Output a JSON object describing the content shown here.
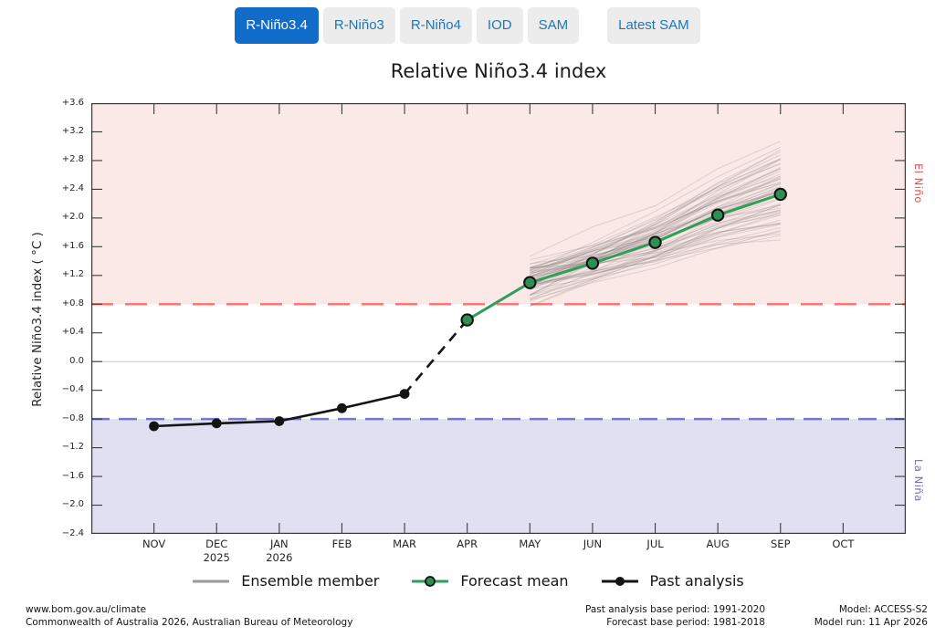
{
  "tabs": {
    "active_bg": "#116bc9",
    "active_fg": "#ffffff",
    "inactive_bg": "#ececec",
    "inactive_fg": "#1f76b4",
    "items": [
      {
        "label": "R-Niño3.4",
        "active": true
      },
      {
        "label": "R-Niño3",
        "active": false
      },
      {
        "label": "R-Niño4",
        "active": false
      },
      {
        "label": "IOD",
        "active": false
      },
      {
        "label": "SAM",
        "active": false
      },
      {
        "label": "Latest SAM",
        "active": false,
        "separated": true
      }
    ]
  },
  "chart_data": {
    "type": "line",
    "title": "Relative Niño3.4 index",
    "ylabel": "Relative Niño3.4 index ( °C )",
    "xlabel": "",
    "ylim": [
      -2.4,
      3.6
    ],
    "grid": "zero-line-only",
    "gridline_at": 0.0,
    "legend_position": "bottom-center",
    "y_ticks": [
      {
        "value": 3.6,
        "label": "+3.6"
      },
      {
        "value": 3.2,
        "label": "+3.2"
      },
      {
        "value": 2.8,
        "label": "+2.8"
      },
      {
        "value": 2.4,
        "label": "+2.4"
      },
      {
        "value": 2.0,
        "label": "+2.0"
      },
      {
        "value": 1.6,
        "label": "+1.6"
      },
      {
        "value": 1.2,
        "label": "+1.2"
      },
      {
        "value": 0.8,
        "label": "+0.8"
      },
      {
        "value": 0.4,
        "label": "+0.4"
      },
      {
        "value": 0.0,
        "label": "0.0"
      },
      {
        "value": -0.4,
        "label": "−0.4"
      },
      {
        "value": -0.8,
        "label": "−0.8"
      },
      {
        "value": -1.2,
        "label": "−1.2"
      },
      {
        "value": -1.6,
        "label": "−1.6"
      },
      {
        "value": -2.0,
        "label": "−2.0"
      },
      {
        "value": -2.4,
        "label": "−2.4"
      }
    ],
    "months": [
      {
        "label": "NOV"
      },
      {
        "label": "DEC",
        "year": "2025"
      },
      {
        "label": "JAN",
        "year": "2026"
      },
      {
        "label": "FEB"
      },
      {
        "label": "MAR"
      },
      {
        "label": "APR"
      },
      {
        "label": "MAY"
      },
      {
        "label": "JUN"
      },
      {
        "label": "JUL"
      },
      {
        "label": "AUG"
      },
      {
        "label": "SEP"
      },
      {
        "label": "OCT"
      }
    ],
    "bands": {
      "el_nino_threshold": 0.8,
      "la_nina_threshold": -0.8,
      "el_nino_fill": "#fbe9e7",
      "la_nina_fill": "#e0e0f2",
      "el_nino_line_color": "#fb5a5a",
      "la_nina_line_color": "#5a5abe",
      "el_nino_label": "El Niño",
      "la_nina_label": "La Niña",
      "el_nino_label_color": "#e05252",
      "la_nina_label_color": "#6f6fbf"
    },
    "series": [
      {
        "name": "Past analysis",
        "style": "line-marker",
        "color": "#141414",
        "x_months": [
          "NOV",
          "DEC",
          "JAN",
          "FEB",
          "MAR"
        ],
        "values": [
          -0.9,
          -0.86,
          -0.83,
          -0.65,
          -0.45
        ]
      },
      {
        "name": "Forecast mean",
        "style": "line-marker",
        "color": "#2f9e5c",
        "marker_fill": "#2c8f55",
        "x_months": [
          "APR",
          "MAY",
          "JUN",
          "JUL",
          "AUG",
          "SEP"
        ],
        "values": [
          0.58,
          1.1,
          1.37,
          1.66,
          2.04,
          2.33
        ]
      },
      {
        "name": "Ensemble member",
        "style": "ensemble",
        "color": "rgba(125,120,120,0.22)",
        "x_months": [
          "MAY",
          "JUN",
          "JUL",
          "AUG",
          "SEP"
        ],
        "mean": [
          1.1,
          1.37,
          1.66,
          2.04,
          2.33
        ],
        "spread_start": 0.38,
        "spread_end": 0.95,
        "jitter": 0.06,
        "count": 60,
        "seed": 42
      }
    ],
    "connector": {
      "from_month": "MAR",
      "from_value": -0.45,
      "to_month": "APR",
      "to_value": 0.58,
      "style": "dashed",
      "color": "#141414"
    }
  },
  "legend": {
    "items": [
      {
        "label": "Ensemble member",
        "swatch": "gray-line"
      },
      {
        "label": "Forecast mean",
        "swatch": "green-line-dot"
      },
      {
        "label": "Past analysis",
        "swatch": "black-line-dot"
      }
    ]
  },
  "footer": {
    "site_url": "www.bom.gov.au/climate",
    "copyright": "Commonwealth of Australia 2026, Australian Bureau of Meteorology",
    "past_base": "Past analysis base period: 1991-2020",
    "forecast_base": "Forecast base period: 1981-2018",
    "model": "Model: ACCESS-S2",
    "model_run": "Model run: 11 Apr 2026"
  }
}
